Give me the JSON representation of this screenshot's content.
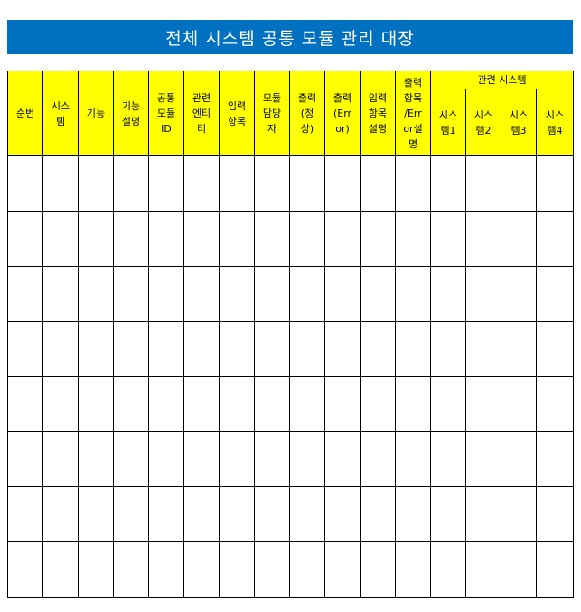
{
  "title": "전체 시스템 공통 모듈 관리 대장",
  "colors": {
    "title_background": "#0070c0",
    "title_text": "#ffffff",
    "header_background": "#ffff00",
    "border": "#000000"
  },
  "table": {
    "columns": [
      {
        "label": "순번"
      },
      {
        "label": "시스\n템"
      },
      {
        "label": "기능"
      },
      {
        "label": "기능\n설명"
      },
      {
        "label": "공통\n모듈\nID"
      },
      {
        "label": "관련\n엔티\n티"
      },
      {
        "label": "입력\n항목"
      },
      {
        "label": "모듈\n담당\n자"
      },
      {
        "label": "출력\n(정\n상)"
      },
      {
        "label": "출력\n(Err\nor)"
      },
      {
        "label": "입력\n항목\n설명"
      },
      {
        "label": "출력\n항목\n/Err\nor설\n명"
      }
    ],
    "group_header": "관련 시스템",
    "group_columns": [
      {
        "label": "시스\n템1"
      },
      {
        "label": "시스\n템2"
      },
      {
        "label": "시스\n템3"
      },
      {
        "label": "시스\n템4"
      }
    ],
    "row_count": 8
  }
}
